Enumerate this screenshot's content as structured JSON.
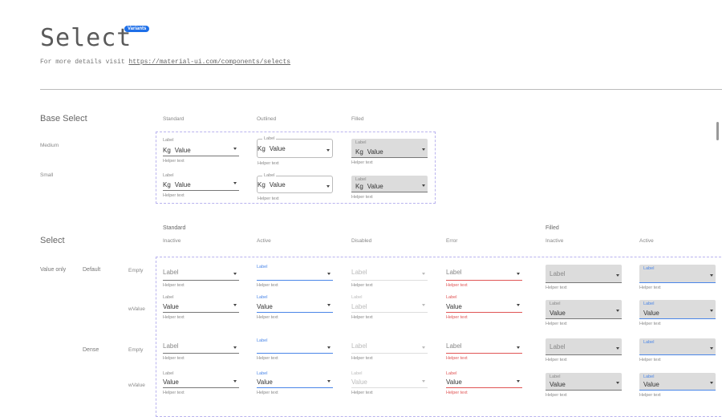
{
  "header": {
    "title": "Select",
    "badge": "Variants",
    "subtitle_prefix": "For more details visit ",
    "link": "https://material-ui.com/components/selects"
  },
  "base": {
    "heading": "Base Select",
    "columns": [
      "Standard",
      "Outlined",
      "Filled"
    ],
    "rows": [
      "Medium",
      "Small"
    ],
    "field": {
      "label": "Label",
      "prefix": "Kg",
      "value": "Value",
      "helper": "Helper text"
    }
  },
  "select": {
    "heading": "Select",
    "group_standard": "Standard",
    "group_filled": "Filled",
    "columns": [
      "Inactive",
      "Active",
      "Disabled",
      "Error",
      "Inactive",
      "Active"
    ],
    "section": "Value only",
    "densities": [
      "Default",
      "Dense"
    ],
    "states": [
      "Empty",
      "wValue"
    ],
    "rows": [
      [
        {
          "label": "Label",
          "value": "",
          "helper": "Helper text"
        },
        {
          "label": "Label",
          "value": "",
          "helper": "Helper text"
        },
        {
          "label": "Label",
          "value": "",
          "helper": "Helper text"
        },
        {
          "label": "Label",
          "value": "",
          "helper": "Helper text"
        },
        {
          "label": "Label",
          "value": "",
          "helper": "Helper text"
        },
        {
          "label": "Label",
          "value": "",
          "helper": "Helper text"
        }
      ],
      [
        {
          "label": "Label",
          "value": "Value",
          "helper": "Helper text"
        },
        {
          "label": "Label",
          "value": "Value",
          "helper": "Helper text"
        },
        {
          "label": "Label",
          "value": "Label",
          "helper": "Helper text"
        },
        {
          "label": "Label",
          "value": "Value",
          "helper": "Helper text"
        },
        {
          "label": "Label",
          "value": "Value",
          "helper": "Helper text"
        },
        {
          "label": "Label",
          "value": "Value",
          "helper": "Helper text"
        }
      ],
      [
        {
          "label": "Label",
          "value": "",
          "helper": "Helper text"
        },
        {
          "label": "Label",
          "value": "",
          "helper": "Helper text"
        },
        {
          "label": "Label",
          "value": "",
          "helper": "Helper text"
        },
        {
          "label": "Label",
          "value": "",
          "helper": "Helper text"
        },
        {
          "label": "Label",
          "value": "",
          "helper": "Helper text"
        },
        {
          "label": "Label",
          "value": "",
          "helper": "Helper text"
        }
      ],
      [
        {
          "label": "Label",
          "value": "Value",
          "helper": "Helper text"
        },
        {
          "label": "Label",
          "value": "Value",
          "helper": "Helper text"
        },
        {
          "label": "Label",
          "value": "Value",
          "helper": "Helper text"
        },
        {
          "label": "Label",
          "value": "Value",
          "helper": "Helper text"
        },
        {
          "label": "Label",
          "value": "Value",
          "helper": "Helper text"
        },
        {
          "label": "Label",
          "value": "Value",
          "helper": "Helper text"
        }
      ]
    ]
  },
  "colors": {
    "accent": "#4a86e8",
    "error": "#e05555",
    "badge": "#1e6fe8",
    "filled_bg": "#dcdcdc",
    "dashed": "#b9b3ee"
  }
}
